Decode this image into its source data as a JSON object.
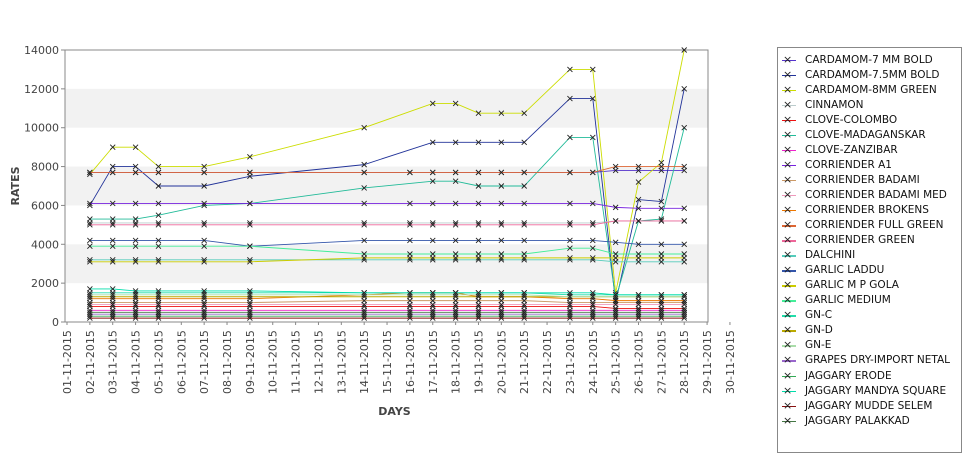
{
  "chart_data": {
    "type": "line",
    "xlabel": "DAYS",
    "ylabel": "RATES",
    "ylim": [
      0,
      14000
    ],
    "yticks": [
      "0",
      "2000",
      "4000",
      "6000",
      "8000",
      "10000",
      "12000",
      "14000"
    ],
    "xticks": [
      "01-11-2015",
      "02-11-2015",
      "03-11-2015",
      "04-11-2015",
      "05-11-2015",
      "06-11-2015",
      "07-11-2015",
      "08-11-2015",
      "09-11-2015",
      "10-11-2015",
      "11-11-2015",
      "12-11-2015",
      "13-11-2015",
      "14-11-2015",
      "15-11-2015",
      "16-11-2015",
      "17-11-2015",
      "18-11-2015",
      "19-11-2015",
      "20-11-2015",
      "21-11-2015",
      "22-11-2015",
      "23-11-2015",
      "24-11-2015",
      "25-11-2015",
      "26-11-2015",
      "27-11-2015",
      "28-11-2015",
      "29-11-2015",
      "30-11-2015"
    ],
    "x_days": [
      2,
      3,
      4,
      5,
      7,
      9,
      14,
      16,
      17,
      18,
      19,
      20,
      21,
      23,
      24,
      25,
      26,
      27,
      28
    ],
    "legend_position": "right",
    "series": [
      {
        "name": "CARDAMOM-7 MM BOLD",
        "color": "#5533cc",
        "values": [
          7700,
          7700,
          7700,
          7700,
          7700,
          7700,
          7700,
          7700,
          7700,
          7700,
          7700,
          7700,
          7700,
          7700,
          7700,
          7800,
          7800,
          7800,
          7800
        ]
      },
      {
        "name": "CARDAMOM-7.5MM BOLD",
        "color": "#223399",
        "values": [
          6000,
          8000,
          8000,
          7000,
          7000,
          7500,
          8100,
          null,
          9250,
          9250,
          9250,
          9250,
          9250,
          11500,
          11500,
          1000,
          6300,
          6200,
          12000
        ]
      },
      {
        "name": "CARDAMOM-8MM GREEN",
        "color": "#ccdd00",
        "values": [
          7600,
          9000,
          9000,
          8000,
          8000,
          8500,
          10000,
          null,
          11250,
          11250,
          10750,
          10750,
          10750,
          13000,
          13000,
          1500,
          7200,
          8200,
          14000
        ]
      },
      {
        "name": "CINNAMON",
        "color": "#bbcccc",
        "values": [
          5100,
          5100,
          5100,
          5100,
          5100,
          5100,
          5100,
          5100,
          5100,
          5100,
          5100,
          5100,
          5100,
          5100,
          5100,
          5200,
          5200,
          5200,
          5200
        ]
      },
      {
        "name": "CLOVE-COLOMBO",
        "color": "#ee1111",
        "values": [
          800,
          800,
          800,
          800,
          800,
          800,
          800,
          800,
          800,
          800,
          800,
          800,
          800,
          800,
          800,
          700,
          700,
          700,
          700
        ]
      },
      {
        "name": "CLOVE-MADAGANSKAR",
        "color": "#22bb99",
        "values": [
          5300,
          5300,
          5300,
          5500,
          6000,
          6100,
          6900,
          null,
          7250,
          7250,
          7000,
          7000,
          7000,
          9500,
          9500,
          1200,
          5200,
          5300,
          10000
        ]
      },
      {
        "name": "CLOVE-ZANZIBAR",
        "color": "#ee22cc",
        "values": [
          600,
          600,
          600,
          600,
          600,
          600,
          600,
          600,
          600,
          600,
          600,
          600,
          600,
          600,
          600,
          600,
          600,
          600,
          600
        ]
      },
      {
        "name": "CORRIENDER A1",
        "color": "#7722dd",
        "values": [
          6100,
          6100,
          6100,
          6100,
          6100,
          6100,
          6100,
          6100,
          6100,
          6100,
          6100,
          6100,
          6100,
          6100,
          6100,
          5900,
          5850,
          5850,
          5850
        ]
      },
      {
        "name": "CORRIENDER BADAMI",
        "color": "#cc9966",
        "values": [
          1000,
          1000,
          1000,
          1000,
          1000,
          1000,
          1100,
          1100,
          1100,
          1100,
          1100,
          1100,
          1100,
          1000,
          1000,
          1000,
          1000,
          1000,
          1000
        ]
      },
      {
        "name": "CORRIENDER BADAMI MED",
        "color": "#ee99bb",
        "values": [
          900,
          900,
          900,
          900,
          900,
          900,
          900,
          900,
          900,
          900,
          900,
          900,
          900,
          900,
          900,
          900,
          900,
          900,
          900
        ]
      },
      {
        "name": "CORRIENDER BROKENS",
        "color": "#ee7700",
        "values": [
          1200,
          1200,
          1200,
          1200,
          1200,
          1200,
          1400,
          1500,
          1500,
          1500,
          1300,
          1300,
          1300,
          1200,
          1200,
          1100,
          1100,
          1100,
          1100
        ]
      },
      {
        "name": "CORRIENDER FULL GREEN",
        "color": "#dd6633",
        "values": [
          7700,
          7700,
          7700,
          7700,
          7700,
          7700,
          7700,
          7700,
          7700,
          7700,
          7700,
          7700,
          7700,
          7700,
          7700,
          8000,
          8000,
          8000,
          8000
        ]
      },
      {
        "name": "CORRIENDER GREEN",
        "color": "#ee6699",
        "values": [
          5000,
          5000,
          5000,
          5000,
          5000,
          5000,
          5000,
          5000,
          5000,
          5000,
          5000,
          5000,
          5000,
          5000,
          5000,
          5200,
          5200,
          5200,
          5200
        ]
      },
      {
        "name": "DALCHINI",
        "color": "#55ccbb",
        "values": [
          3200,
          3200,
          3200,
          3200,
          3200,
          3200,
          3200,
          3200,
          3200,
          3200,
          3200,
          3200,
          3200,
          3200,
          3200,
          3100,
          3100,
          3100,
          3100
        ]
      },
      {
        "name": "GARLIC LADDU",
        "color": "#3355aa",
        "values": [
          4200,
          4200,
          4200,
          4200,
          4200,
          3900,
          4200,
          4200,
          4200,
          4200,
          4200,
          4200,
          4200,
          4200,
          4200,
          4100,
          4000,
          4000,
          4000
        ]
      },
      {
        "name": "GARLIC M P GOLA",
        "color": "#cccc00",
        "values": [
          3100,
          3100,
          3100,
          3100,
          3100,
          3100,
          3300,
          3300,
          3300,
          3300,
          3300,
          3300,
          3300,
          3300,
          3300,
          3300,
          3300,
          3300,
          3300
        ]
      },
      {
        "name": "GARLIC MEDIUM",
        "color": "#44ee99",
        "values": [
          3900,
          3900,
          3900,
          3900,
          3900,
          3900,
          3500,
          3500,
          3500,
          3500,
          3500,
          3500,
          3500,
          3800,
          3800,
          3500,
          3500,
          3500,
          3500
        ]
      },
      {
        "name": "GN-C",
        "color": "#22ddaa",
        "values": [
          1500,
          1500,
          1500,
          1500,
          1500,
          1500,
          1500,
          1500,
          1500,
          1500,
          1500,
          1500,
          1500,
          1400,
          1400,
          1400,
          1400,
          1400,
          1400
        ]
      },
      {
        "name": "GN-D",
        "color": "#bbaa00",
        "values": [
          1300,
          1300,
          1300,
          1300,
          1300,
          1300,
          1300,
          1300,
          1300,
          1300,
          1300,
          1300,
          1300,
          1300,
          1300,
          1300,
          1300,
          1300,
          1300
        ]
      },
      {
        "name": "GN-E",
        "color": "#aaddaa",
        "values": [
          1400,
          1400,
          1400,
          1400,
          1400,
          1400,
          1400,
          1400,
          1400,
          1400,
          1400,
          1400,
          1400,
          1300,
          1300,
          1300,
          1300,
          1300,
          1300
        ]
      },
      {
        "name": "GRAPES DRY-IMPORT NETAL",
        "color": "#9966cc",
        "values": [
          400,
          400,
          400,
          400,
          400,
          400,
          400,
          400,
          400,
          400,
          400,
          400,
          400,
          400,
          400,
          400,
          400,
          400,
          400
        ]
      },
      {
        "name": "JAGGARY ERODE",
        "color": "#33aa55",
        "values": [
          300,
          300,
          300,
          300,
          300,
          300,
          300,
          300,
          300,
          300,
          300,
          300,
          300,
          300,
          300,
          300,
          300,
          300,
          300
        ]
      },
      {
        "name": "JAGGARY MANDYA SQUARE",
        "color": "#00ddaa",
        "values": [
          1700,
          1700,
          1600,
          1600,
          1600,
          1600,
          1500,
          1500,
          1500,
          1500,
          1500,
          1500,
          1500,
          1500,
          1500,
          1400,
          1400,
          1400,
          1400
        ]
      },
      {
        "name": "JAGGARY MUDDE SELEM",
        "color": "#881111",
        "values": [
          200,
          200,
          200,
          200,
          200,
          200,
          200,
          200,
          200,
          200,
          200,
          200,
          200,
          200,
          200,
          200,
          200,
          200,
          200
        ]
      },
      {
        "name": "JAGGARY PALAKKAD",
        "color": "#447744",
        "values": [
          500,
          500,
          500,
          500,
          500,
          500,
          500,
          500,
          500,
          500,
          500,
          500,
          500,
          500,
          500,
          500,
          500,
          500,
          500
        ]
      }
    ]
  }
}
